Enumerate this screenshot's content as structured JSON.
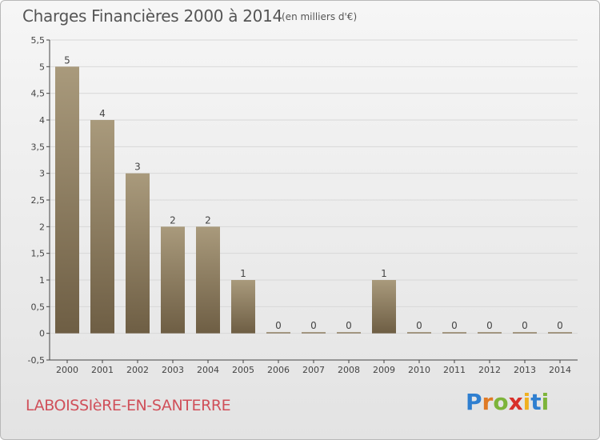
{
  "header": {
    "title": "Charges Financières 2000 à 2014",
    "unit": "(en milliers d'€)"
  },
  "footer": {
    "town": "LABOISSIèRE-EN-SANTERRE",
    "logo": "Proxiti"
  },
  "colors": {
    "bar_top": "#a99a7c",
    "bar_bottom": "#6e5e44",
    "axis": "#444444",
    "grid": "#d8d8d8",
    "town": "#d0505a"
  },
  "chart_data": {
    "type": "bar",
    "categories": [
      "2000",
      "2001",
      "2002",
      "2003",
      "2004",
      "2005",
      "2006",
      "2007",
      "2008",
      "2009",
      "2010",
      "2011",
      "2012",
      "2013",
      "2014"
    ],
    "values": [
      5,
      4,
      3,
      2,
      2,
      1,
      0,
      0,
      0,
      1,
      0,
      0,
      0,
      0,
      0
    ],
    "ylim": [
      -0.5,
      5.5
    ],
    "yticks": [
      "-0,5",
      "0",
      "0,5",
      "1",
      "1,5",
      "2",
      "2,5",
      "3",
      "3,5",
      "4",
      "4,5",
      "5",
      "5,5"
    ],
    "grid": true
  }
}
